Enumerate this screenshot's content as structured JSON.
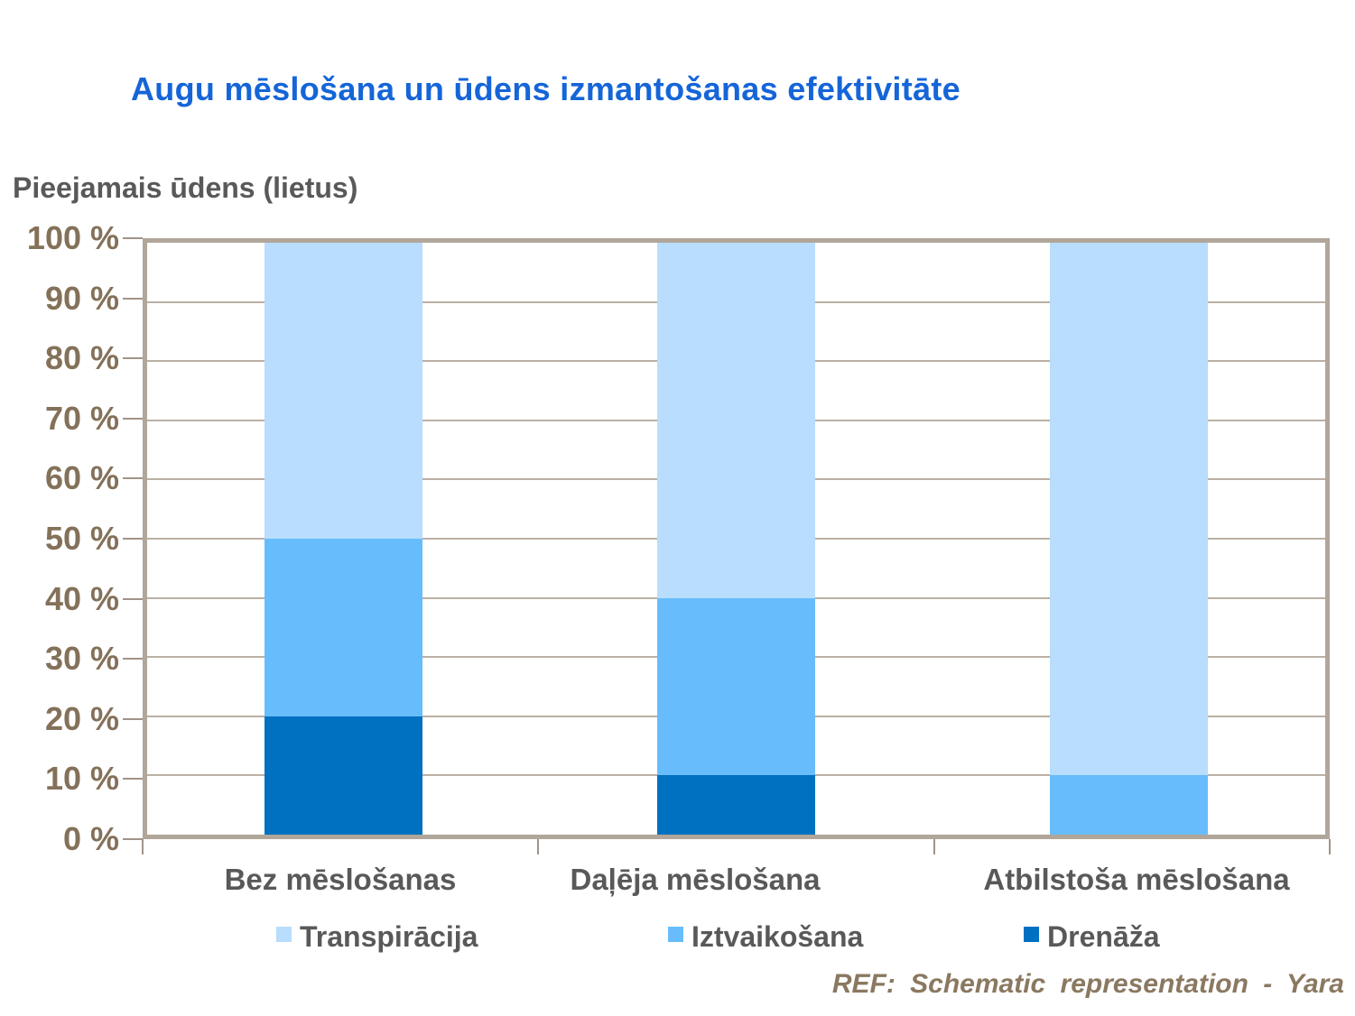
{
  "title": "Augu mēslošana un ūdens izmantošanas efektivitāte",
  "footer": "REF: Schematic representation - Yara",
  "colors": {
    "title_blue": "#1565D8",
    "text_gray": "#595959",
    "axis_brown": "#84715A",
    "footer_brown": "#8A7860",
    "gridline_tan": "#BBB0A4",
    "plot_border_tan": "#B1A69A",
    "transpiracija_light_blue": "#B8DDFD",
    "iztvaikosana_mid_blue": "#67BDFC",
    "drenaza_dark_blue": "#0070C0"
  },
  "chart_data": {
    "type": "bar",
    "stacked": true,
    "title": "Augu mēslošana un ūdens izmantošanas efektivitāte",
    "ylabel": "Pieejamais ūdens (lietus)",
    "xlabel": "",
    "categories": [
      "Bez mēslošanas",
      "Daļēja mēslošana",
      "Atbilstoša mēslošana"
    ],
    "series": [
      {
        "name": "Drenāža",
        "color": "#0070C0",
        "values": [
          20,
          10,
          0
        ]
      },
      {
        "name": "Iztvaikošana",
        "color": "#67BDFC",
        "values": [
          30,
          30,
          10
        ]
      },
      {
        "name": "Transpirācija",
        "color": "#B8DDFD",
        "values": [
          50,
          60,
          90
        ]
      }
    ],
    "legend_order": [
      "Transpirācija",
      "Iztvaikošana",
      "Drenāža"
    ],
    "legend_position": "bottom",
    "grid": true,
    "ylim": [
      0,
      100
    ],
    "ytick_step": 10,
    "ytick_suffix": " %"
  }
}
